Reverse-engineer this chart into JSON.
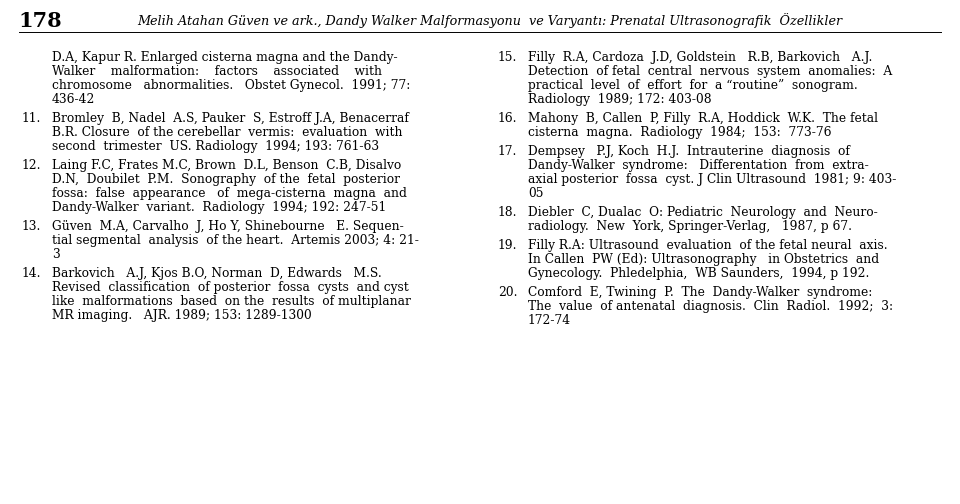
{
  "header_num": "178",
  "header_text": "Melih Atahan Güven ve ark., Dandy Walker Malformasyonu  ve Varyantı: Prenatal Ultrasonografik  Özellikler",
  "background_color": "#ffffff",
  "text_color": "#000000",
  "left_col_entries": [
    {
      "num": "",
      "lines": [
        "D.A, Kapur R. Enlarged cisterna magna and the Dandy-",
        "Walker    malformation:    factors    associated    with",
        "chromosome   abnormalities.   Obstet Gynecol.  1991; 77:",
        "436-42"
      ]
    },
    {
      "num": "11.",
      "lines": [
        "Bromley  B, Nadel  A.S, Pauker  S, Estroff J.A, Benacerraf",
        "B.R. Closure  of the cerebellar  vermis:  evaluation  with",
        "second  trimester  US. Radiology  1994; 193: 761-63"
      ]
    },
    {
      "num": "12.",
      "lines": [
        "Laing F.C, Frates M.C, Brown  D.L, Benson  C.B, Disalvo",
        "D.N,  Doubilet  P.M.  Sonography  of the  fetal  posterior",
        "fossa:  false  appearance   of  mega-cisterna  magna  and",
        "Dandy-Walker  variant.  Radiology  1994; 192: 247-51"
      ]
    },
    {
      "num": "13.",
      "lines": [
        "Güven  M.A, Carvalho  J, Ho Y, Shinebourne   E. Sequen-",
        "tial segmental  analysis  of the heart.  Artemis 2003; 4: 21-",
        "3"
      ]
    },
    {
      "num": "14.",
      "lines": [
        "Barkovich   A.J, Kjos B.O, Norman  D, Edwards   M.S.",
        "Revised  classification  of posterior  fossa  cysts  and cyst",
        "like  malformations  based  on the  results  of multiplanar",
        "MR imaging.   AJR. 1989; 153: 1289-1300"
      ]
    }
  ],
  "right_col_entries": [
    {
      "num": "15.",
      "lines": [
        "Filly  R.A, Cardoza  J.D, Goldstein   R.B, Barkovich   A.J.",
        "Detection  of fetal  central  nervous  system  anomalies:  A",
        "practical  level  of  effort  for  a “routine”  sonogram.",
        "Radiology  1989; 172: 403-08"
      ]
    },
    {
      "num": "16.",
      "lines": [
        "Mahony  B, Callen  P, Filly  R.A, Hoddick  W.K.  The fetal",
        "cisterna  magna.  Radiology  1984;  153:  773-76"
      ]
    },
    {
      "num": "17.",
      "lines": [
        "Dempsey   P.J, Koch  H.J.  Intrauterine  diagnosis  of",
        "Dandy-Walker  syndrome:   Differentation  from  extra-",
        "axial posterior  fossa  cyst. J Clin Ultrasound  1981; 9: 403-",
        "05"
      ]
    },
    {
      "num": "18.",
      "lines": [
        "Diebler  C, Dualac  O: Pediatric  Neurology  and  Neuro-",
        "radiology.  New  York, Springer-Verlag,   1987, p 67."
      ]
    },
    {
      "num": "19.",
      "lines": [
        "Filly R.A: Ultrasound  evaluation  of the fetal neural  axis.",
        "In Callen  PW (Ed): Ultrasonography   in Obstetrics  and",
        "Gynecology.  Phledelphia,  WB Saunders,  1994, p 192."
      ]
    },
    {
      "num": "20.",
      "lines": [
        "Comford  E, Twining  P.  The  Dandy-Walker  syndrome:",
        "The  value  of antenatal  diagnosis.  Clin  Radiol.  1992;  3:",
        "172-74"
      ]
    }
  ]
}
